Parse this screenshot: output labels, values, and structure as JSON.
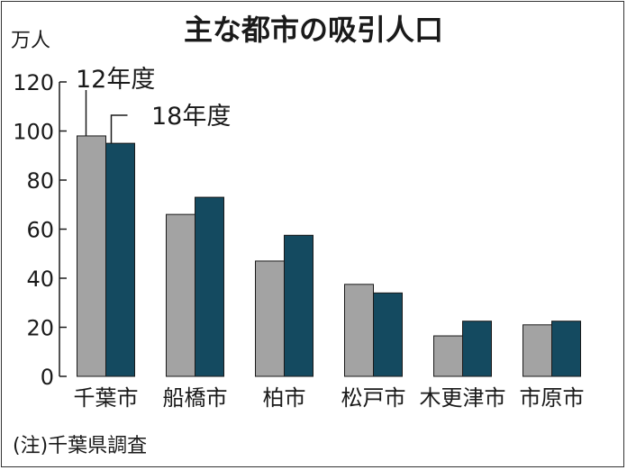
{
  "chart_data": {
    "type": "bar",
    "title": "主な都市の吸引人口",
    "ylabel": "万人",
    "note": "(注)千葉県調査",
    "categories": [
      "千葉市",
      "船橋市",
      "柏市",
      "松戸市",
      "木更津市",
      "市原市"
    ],
    "series": [
      {
        "name": "12年度",
        "color": "#a3a3a3",
        "values": [
          98,
          66,
          47,
          37.5,
          16.5,
          21
        ]
      },
      {
        "name": "18年度",
        "color": "#144a60",
        "values": [
          95,
          73,
          57.5,
          34,
          22.5,
          22.5
        ]
      }
    ],
    "ylim": [
      0,
      120
    ],
    "yticks": [
      0,
      20,
      40,
      60,
      80,
      100,
      120
    ],
    "grid": false,
    "legend": "direct-labels-top-left"
  }
}
